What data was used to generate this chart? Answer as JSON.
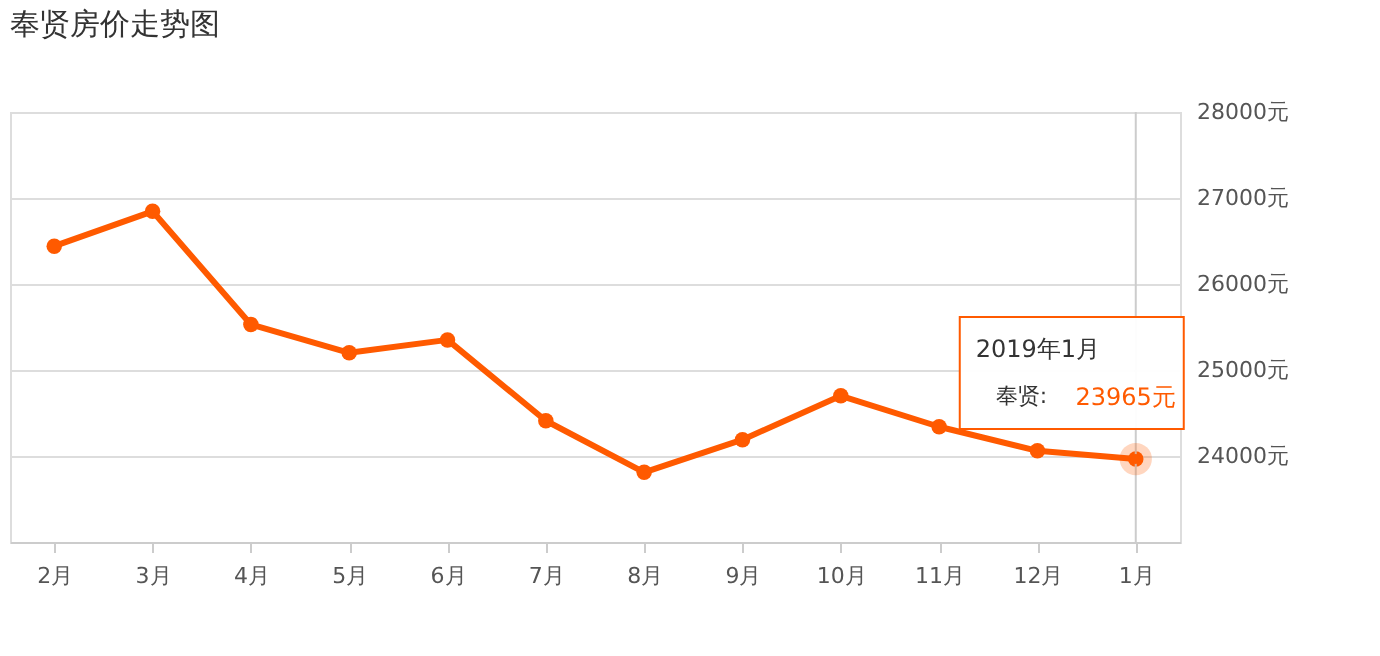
{
  "chart_data": {
    "type": "line",
    "title": "奉贤房价走势图",
    "categories": [
      "2月",
      "3月",
      "4月",
      "5月",
      "6月",
      "7月",
      "8月",
      "9月",
      "10月",
      "11月",
      "12月",
      "1月"
    ],
    "series": [
      {
        "name": "奉贤:",
        "color": "#ff5a00",
        "values": [
          26440,
          26845,
          25530,
          25200,
          25350,
          24410,
          23810,
          24190,
          24700,
          24340,
          24060,
          23965
        ],
        "value_labels": [
          null,
          null,
          null,
          null,
          null,
          null,
          null,
          null,
          null,
          null,
          null,
          "23965元"
        ]
      }
    ],
    "ylim": [
      23000,
      28000
    ],
    "yticks": [
      {
        "value": 24000,
        "label": "24000元"
      },
      {
        "value": 25000,
        "label": "25000元"
      },
      {
        "value": 26000,
        "label": "26000元"
      },
      {
        "value": 27000,
        "label": "27000元"
      },
      {
        "value": 28000,
        "label": "28000元"
      }
    ],
    "grid": "y",
    "marker": "circle",
    "line_style": "solid",
    "legend": false,
    "ref_lines": [
      {
        "axis": "x",
        "value": "1月",
        "color": "#cccccc"
      }
    ],
    "annotations": [
      "2019年1月"
    ]
  }
}
